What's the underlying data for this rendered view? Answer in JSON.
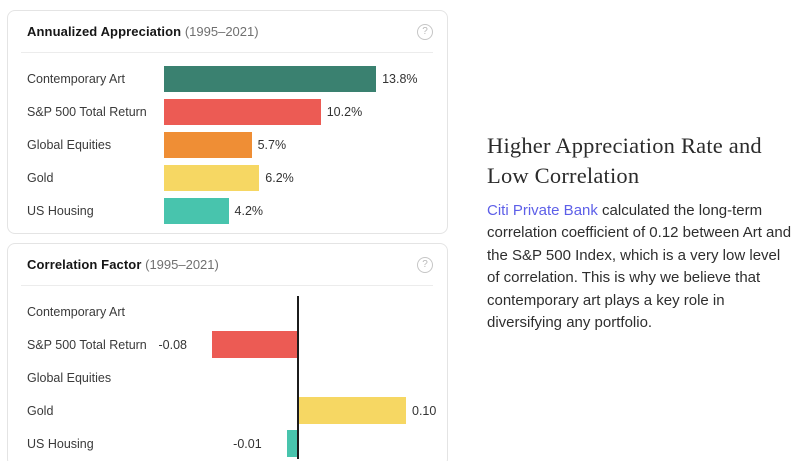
{
  "article": {
    "heading": "Higher Appreciation Rate and Low Correlation",
    "link_text": "Citi Private Bank",
    "body_after_link": " calculated the long-term correlation coefficient of 0.12 between Art and the S&P 500 Index, which is a very low level of correlation. This is why we believe that contemporary art plays a key role in diversifying any portfolio."
  },
  "help_icon_glyph": "?",
  "chart_data": [
    {
      "type": "bar",
      "orientation": "horizontal",
      "diverging": false,
      "title": "Annualized Appreciation",
      "subtitle": "(1995–2021)",
      "categories": [
        "Contemporary Art",
        "S&P 500 Total Return",
        "Global Equities",
        "Gold",
        "US Housing"
      ],
      "values": [
        13.8,
        10.2,
        5.7,
        6.2,
        4.2
      ],
      "value_labels": [
        "13.8%",
        "10.2%",
        "5.7%",
        "6.2%",
        "4.2%"
      ],
      "colors": [
        "#3a8170",
        "#ec5b54",
        "#ef8e35",
        "#f6d763",
        "#48c4ad"
      ],
      "xlabel": "",
      "ylabel": "",
      "xlim": [
        0,
        17.7
      ],
      "grid": false,
      "legend": false
    },
    {
      "type": "bar",
      "orientation": "horizontal",
      "diverging": true,
      "title": "Correlation Factor",
      "subtitle": "(1995–2021)",
      "categories": [
        "Contemporary Art",
        "S&P 500 Total Return",
        "Global Equities",
        "Gold",
        "US Housing"
      ],
      "values": [
        null,
        -0.08,
        null,
        0.1,
        -0.01
      ],
      "value_labels": [
        "",
        "-0.08",
        "",
        "0.10",
        "-0.01"
      ],
      "colors": [
        "#3a8170",
        "#ec5b54",
        "#ef8e35",
        "#f6d763",
        "#48c4ad"
      ],
      "xlabel": "",
      "ylabel": "",
      "xlim": [
        -0.125,
        0.13
      ],
      "grid": false,
      "legend": false
    }
  ]
}
